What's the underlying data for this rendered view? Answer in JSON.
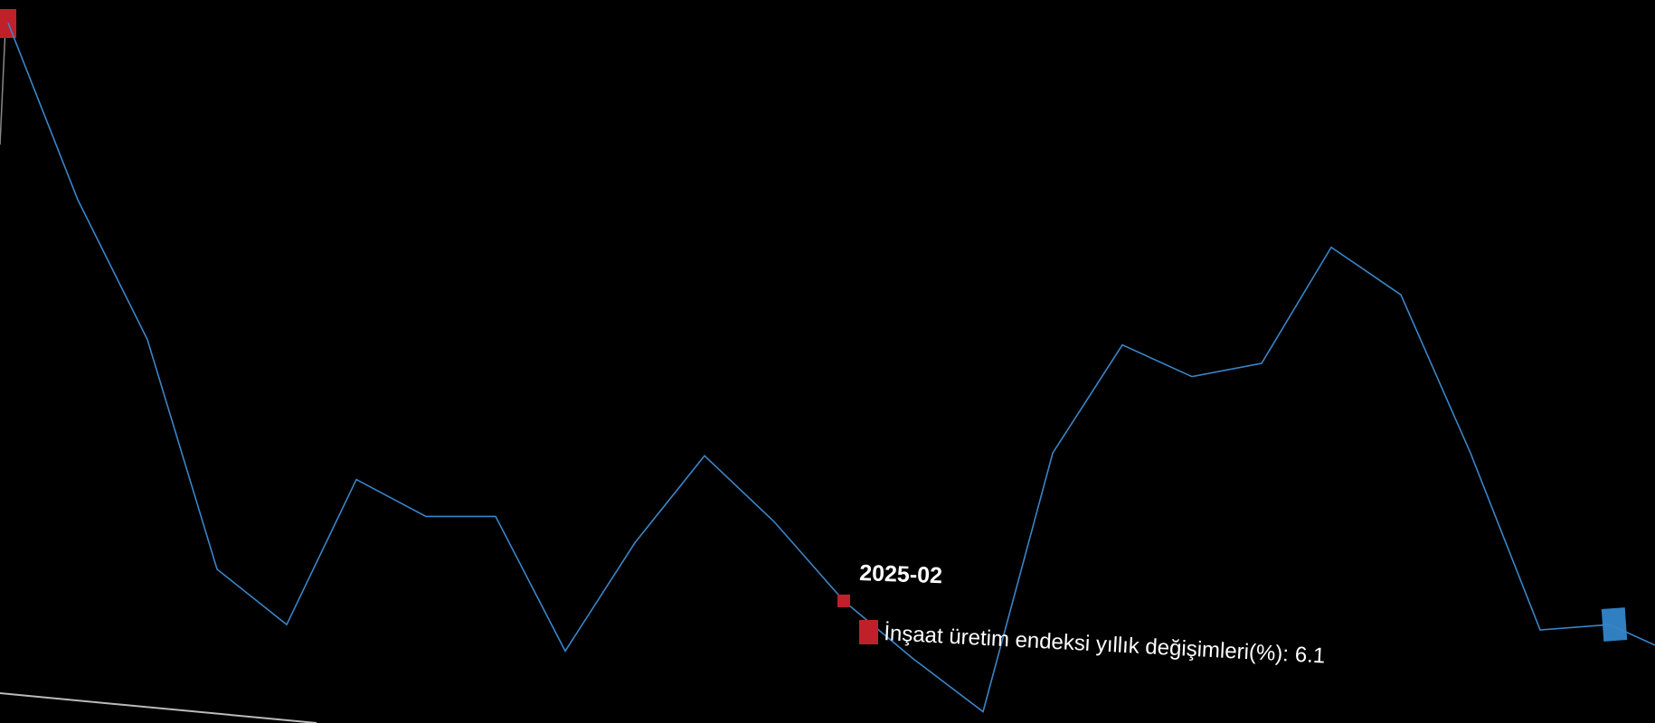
{
  "chart_data": {
    "type": "line",
    "categories": [
      null,
      null,
      null,
      null,
      null,
      null,
      null,
      null,
      null,
      null,
      null,
      null,
      "2025-02",
      null,
      null,
      null,
      null,
      null,
      null,
      null,
      null,
      null,
      null,
      null,
      null
    ],
    "series": [
      {
        "name": "İnşaat üretim endeksi yıllık değişimleri(%)",
        "color": "#3a85c8",
        "values": [
          28.0,
          21.3,
          16.0,
          7.3,
          5.2,
          10.7,
          9.3,
          9.3,
          4.2,
          8.3,
          11.6,
          9.1,
          6.1,
          3.9,
          1.9,
          11.7,
          15.8,
          14.6,
          15.1,
          19.5,
          17.7,
          11.7,
          5.0,
          5.2,
          4.0
        ]
      }
    ],
    "ylim": [
      0,
      30
    ],
    "tooltip_separator": ":"
  }
}
